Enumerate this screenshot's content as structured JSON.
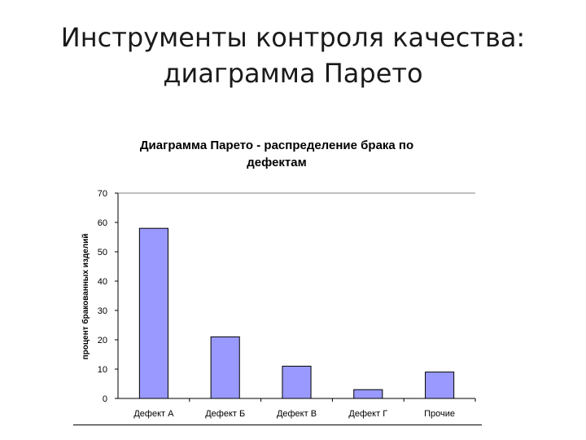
{
  "slide": {
    "title_line1": "Инструменты контроля качества:",
    "title_line2": "диаграмма Парето"
  },
  "chart_data": {
    "type": "bar",
    "title_line1": "Диаграмма Парето - распределение брака по",
    "title_line2": "дефектам",
    "ylabel": "процент бракованных изделий",
    "xlabel": "",
    "categories": [
      "Дефект А",
      "Дефект Б",
      "Дефект В",
      "Дефект Г",
      "Прочие"
    ],
    "values": [
      58,
      21,
      11,
      3,
      9
    ],
    "ylim": [
      0,
      70
    ],
    "yticks": [
      0,
      10,
      20,
      30,
      40,
      50,
      60,
      70
    ],
    "grid": "top line only",
    "legend": "none",
    "bar_color": "#9999ff",
    "bar_border": "#000000"
  }
}
